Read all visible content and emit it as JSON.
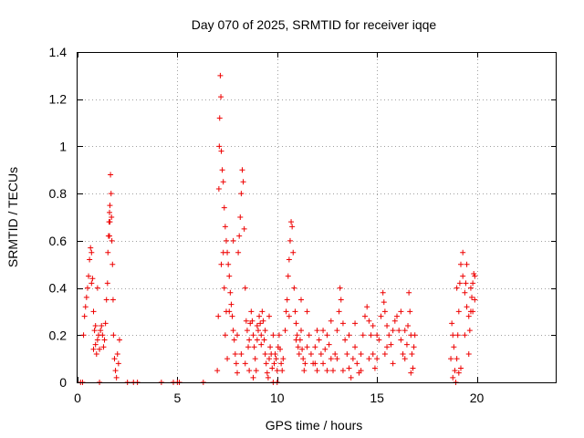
{
  "chart_data": {
    "type": "scatter",
    "title": "Day 070 of 2025, SRMTID for receiver iqqe",
    "xlabel": "GPS time / hours",
    "ylabel": "SRMTID / TECUs",
    "xlim": [
      0,
      24
    ],
    "ylim": [
      0,
      1.4
    ],
    "xticks": [
      0,
      5,
      10,
      15,
      20
    ],
    "xtick_labels": [
      "0",
      "5",
      "10",
      "15",
      "20"
    ],
    "yticks": [
      0,
      0.2,
      0.4,
      0.6,
      0.8,
      1.0,
      1.2,
      1.4
    ],
    "ytick_labels": [
      "0",
      "0.2",
      "0.4",
      "0.6",
      "0.8",
      "1",
      "1.2",
      "1.4"
    ],
    "grid": true,
    "legend": "none",
    "marker": "+",
    "color": "#ee0000",
    "series": [
      {
        "name": "SRMTID",
        "points": [
          [
            0.25,
            0.0
          ],
          [
            0.3,
            0.2
          ],
          [
            0.35,
            0.28
          ],
          [
            0.4,
            0.32
          ],
          [
            0.45,
            0.36
          ],
          [
            0.5,
            0.4
          ],
          [
            0.55,
            0.45
          ],
          [
            0.6,
            0.52
          ],
          [
            0.65,
            0.57
          ],
          [
            0.7,
            0.55
          ],
          [
            0.75,
            0.44
          ],
          [
            0.8,
            0.3
          ],
          [
            0.85,
            0.22
          ],
          [
            0.9,
            0.16
          ],
          [
            0.95,
            0.12
          ],
          [
            1.0,
            0.18
          ],
          [
            1.05,
            0.2
          ],
          [
            1.1,
            0.14
          ],
          [
            1.15,
            0.22
          ],
          [
            1.2,
            0.24
          ],
          [
            1.25,
            0.2
          ],
          [
            1.3,
            0.15
          ],
          [
            1.35,
            0.18
          ],
          [
            1.4,
            0.25
          ],
          [
            1.45,
            0.35
          ],
          [
            1.5,
            0.42
          ],
          [
            1.52,
            0.55
          ],
          [
            1.55,
            0.62
          ],
          [
            1.58,
            0.68
          ],
          [
            1.6,
            0.72
          ],
          [
            1.62,
            0.75
          ],
          [
            1.65,
            0.88
          ],
          [
            1.68,
            0.8
          ],
          [
            1.7,
            0.7
          ],
          [
            1.72,
            0.6
          ],
          [
            1.75,
            0.5
          ],
          [
            1.78,
            0.35
          ],
          [
            1.8,
            0.2
          ],
          [
            1.85,
            0.1
          ],
          [
            1.9,
            0.05
          ],
          [
            1.95,
            0.02
          ],
          [
            2.0,
            0.12
          ],
          [
            2.05,
            0.08
          ],
          [
            2.1,
            0.18
          ],
          [
            0.8,
            0.14
          ],
          [
            0.9,
            0.24
          ],
          [
            1.0,
            0.4
          ],
          [
            0.7,
            0.42
          ],
          [
            1.6,
            0.62
          ],
          [
            1.62,
            0.68
          ],
          [
            2.5,
            0.0
          ],
          [
            2.8,
            0.0
          ],
          [
            3.0,
            0.0
          ],
          [
            4.2,
            0.0
          ],
          [
            4.8,
            0.0
          ],
          [
            5.0,
            0.0
          ],
          [
            5.1,
            0.0
          ],
          [
            6.3,
            0.0
          ],
          [
            1.1,
            0.0
          ],
          [
            0.15,
            0.0
          ],
          [
            7.0,
            0.05
          ],
          [
            7.05,
            0.28
          ],
          [
            7.08,
            0.82
          ],
          [
            7.1,
            1.0
          ],
          [
            7.12,
            1.12
          ],
          [
            7.15,
            1.3
          ],
          [
            7.18,
            1.21
          ],
          [
            7.2,
            0.98
          ],
          [
            7.25,
            0.9
          ],
          [
            7.3,
            0.85
          ],
          [
            7.35,
            0.74
          ],
          [
            7.4,
            0.66
          ],
          [
            7.45,
            0.6
          ],
          [
            7.5,
            0.55
          ],
          [
            7.55,
            0.5
          ],
          [
            7.6,
            0.45
          ],
          [
            7.65,
            0.38
          ],
          [
            7.7,
            0.33
          ],
          [
            7.75,
            0.28
          ],
          [
            7.8,
            0.22
          ],
          [
            7.85,
            0.18
          ],
          [
            7.9,
            0.12
          ],
          [
            7.95,
            0.08
          ],
          [
            8.0,
            0.04
          ],
          [
            8.05,
            0.55
          ],
          [
            8.1,
            0.62
          ],
          [
            8.15,
            0.7
          ],
          [
            8.2,
            0.8
          ],
          [
            8.25,
            0.9
          ],
          [
            8.3,
            0.85
          ],
          [
            8.35,
            0.65
          ],
          [
            8.4,
            0.4
          ],
          [
            8.45,
            0.26
          ],
          [
            8.5,
            0.22
          ],
          [
            8.55,
            0.15
          ],
          [
            8.6,
            0.18
          ],
          [
            8.65,
            0.25
          ],
          [
            8.7,
            0.3
          ],
          [
            8.75,
            0.26
          ],
          [
            8.8,
            0.2
          ],
          [
            8.85,
            0.15
          ],
          [
            8.9,
            0.1
          ],
          [
            8.95,
            0.05
          ],
          [
            9.0,
            0.18
          ],
          [
            9.05,
            0.22
          ],
          [
            9.1,
            0.28
          ],
          [
            9.15,
            0.25
          ],
          [
            9.2,
            0.2
          ],
          [
            9.25,
            0.3
          ],
          [
            9.3,
            0.26
          ],
          [
            9.35,
            0.18
          ],
          [
            9.4,
            0.12
          ],
          [
            9.45,
            0.08
          ],
          [
            9.5,
            0.04
          ],
          [
            9.55,
            0.02
          ],
          [
            9.6,
            0.1
          ],
          [
            9.65,
            0.15
          ],
          [
            9.7,
            0.12
          ],
          [
            9.75,
            0.06
          ],
          [
            9.8,
            0.0
          ],
          [
            9.85,
            0.08
          ],
          [
            9.9,
            0.12
          ],
          [
            9.95,
            0.1
          ],
          [
            10.0,
            0.05
          ],
          [
            10.05,
            0.15
          ],
          [
            10.1,
            0.2
          ],
          [
            10.15,
            0.14
          ],
          [
            10.2,
            0.08
          ],
          [
            10.25,
            0.05
          ],
          [
            10.3,
            0.1
          ],
          [
            7.3,
            0.55
          ],
          [
            7.4,
            0.2
          ],
          [
            7.5,
            0.1
          ],
          [
            7.6,
            0.3
          ],
          [
            7.8,
            0.6
          ],
          [
            8.0,
            0.2
          ],
          [
            8.2,
            0.12
          ],
          [
            8.4,
            0.08
          ],
          [
            8.6,
            0.05
          ],
          [
            8.8,
            0.02
          ],
          [
            9.0,
            0.24
          ],
          [
            9.2,
            0.16
          ],
          [
            9.4,
            0.22
          ],
          [
            9.6,
            0.28
          ],
          [
            9.8,
            0.2
          ],
          [
            10.0,
            0.0
          ],
          [
            7.2,
            0.5
          ],
          [
            7.35,
            0.4
          ],
          [
            7.45,
            0.3
          ],
          [
            10.4,
            0.22
          ],
          [
            10.45,
            0.3
          ],
          [
            10.5,
            0.35
          ],
          [
            10.55,
            0.45
          ],
          [
            10.6,
            0.52
          ],
          [
            10.65,
            0.6
          ],
          [
            10.7,
            0.68
          ],
          [
            10.75,
            0.66
          ],
          [
            10.8,
            0.55
          ],
          [
            10.85,
            0.4
          ],
          [
            10.9,
            0.3
          ],
          [
            10.95,
            0.25
          ],
          [
            11.0,
            0.2
          ],
          [
            11.05,
            0.15
          ],
          [
            11.1,
            0.12
          ],
          [
            11.15,
            0.18
          ],
          [
            11.2,
            0.22
          ],
          [
            11.25,
            0.14
          ],
          [
            11.3,
            0.1
          ],
          [
            11.35,
            0.05
          ],
          [
            11.4,
            0.08
          ],
          [
            11.5,
            0.15
          ],
          [
            11.6,
            0.2
          ],
          [
            11.7,
            0.12
          ],
          [
            11.8,
            0.08
          ],
          [
            11.9,
            0.15
          ],
          [
            12.0,
            0.22
          ],
          [
            12.1,
            0.18
          ],
          [
            12.2,
            0.12
          ],
          [
            12.3,
            0.08
          ],
          [
            12.4,
            0.14
          ],
          [
            12.5,
            0.2
          ],
          [
            12.6,
            0.16
          ],
          [
            12.7,
            0.1
          ],
          [
            12.8,
            0.05
          ],
          [
            12.9,
            0.12
          ],
          [
            13.0,
            0.22
          ],
          [
            13.1,
            0.3
          ],
          [
            13.15,
            0.4
          ],
          [
            13.2,
            0.35
          ],
          [
            13.3,
            0.25
          ],
          [
            13.4,
            0.18
          ],
          [
            13.5,
            0.12
          ],
          [
            13.6,
            0.06
          ],
          [
            13.7,
            0.02
          ],
          [
            13.8,
            0.1
          ],
          [
            13.9,
            0.15
          ],
          [
            14.0,
            0.08
          ],
          [
            14.1,
            0.04
          ],
          [
            14.2,
            0.12
          ],
          [
            14.3,
            0.2
          ],
          [
            14.4,
            0.28
          ],
          [
            14.5,
            0.32
          ],
          [
            14.6,
            0.26
          ],
          [
            14.7,
            0.2
          ],
          [
            14.8,
            0.12
          ],
          [
            14.9,
            0.06
          ],
          [
            15.0,
            0.1
          ],
          [
            15.1,
            0.18
          ],
          [
            15.2,
            0.28
          ],
          [
            15.3,
            0.38
          ],
          [
            15.35,
            0.34
          ],
          [
            15.4,
            0.3
          ],
          [
            15.5,
            0.24
          ],
          [
            15.6,
            0.2
          ],
          [
            15.7,
            0.16
          ],
          [
            15.8,
            0.22
          ],
          [
            15.9,
            0.26
          ],
          [
            16.0,
            0.28
          ],
          [
            16.1,
            0.22
          ],
          [
            16.2,
            0.18
          ],
          [
            16.3,
            0.12
          ],
          [
            16.4,
            0.1
          ],
          [
            16.5,
            0.16
          ],
          [
            16.55,
            0.24
          ],
          [
            16.6,
            0.38
          ],
          [
            16.65,
            0.3
          ],
          [
            16.7,
            0.2
          ],
          [
            16.75,
            0.12
          ],
          [
            16.8,
            0.06
          ],
          [
            16.85,
            0.15
          ],
          [
            16.9,
            0.2
          ],
          [
            11.5,
            0.3
          ],
          [
            11.9,
            0.08
          ],
          [
            12.3,
            0.22
          ],
          [
            12.7,
            0.26
          ],
          [
            13.3,
            0.05
          ],
          [
            13.6,
            0.2
          ],
          [
            14.2,
            0.05
          ],
          [
            14.6,
            0.1
          ],
          [
            15.0,
            0.2
          ],
          [
            15.4,
            0.12
          ],
          [
            15.8,
            0.08
          ],
          [
            16.2,
            0.3
          ],
          [
            16.7,
            0.04
          ],
          [
            12.0,
            0.05
          ],
          [
            12.5,
            0.05
          ],
          [
            13.0,
            0.1
          ],
          [
            13.9,
            0.25
          ],
          [
            14.8,
            0.24
          ],
          [
            15.5,
            0.15
          ],
          [
            16.4,
            0.22
          ],
          [
            11.2,
            0.35
          ],
          [
            10.6,
            0.28
          ],
          [
            10.95,
            0.18
          ],
          [
            18.7,
            0.1
          ],
          [
            18.75,
            0.25
          ],
          [
            18.8,
            0.2
          ],
          [
            18.85,
            0.15
          ],
          [
            18.9,
            0.05
          ],
          [
            18.95,
            0.0
          ],
          [
            19.0,
            0.1
          ],
          [
            19.05,
            0.2
          ],
          [
            19.1,
            0.3
          ],
          [
            19.15,
            0.42
          ],
          [
            19.2,
            0.5
          ],
          [
            19.3,
            0.45
          ],
          [
            19.4,
            0.38
          ],
          [
            19.5,
            0.32
          ],
          [
            19.6,
            0.28
          ],
          [
            19.65,
            0.22
          ],
          [
            19.7,
            0.3
          ],
          [
            19.75,
            0.36
          ],
          [
            19.8,
            0.42
          ],
          [
            19.85,
            0.46
          ],
          [
            19.9,
            0.45
          ],
          [
            19.2,
            0.06
          ],
          [
            19.3,
            0.55
          ],
          [
            19.4,
            0.2
          ],
          [
            19.5,
            0.5
          ],
          [
            19.6,
            0.12
          ],
          [
            19.7,
            0.4
          ],
          [
            19.8,
            0.3
          ],
          [
            19.9,
            0.35
          ],
          [
            19.0,
            0.4
          ],
          [
            19.1,
            0.04
          ],
          [
            18.8,
            0.02
          ],
          [
            19.45,
            0.42
          ]
        ]
      }
    ]
  }
}
